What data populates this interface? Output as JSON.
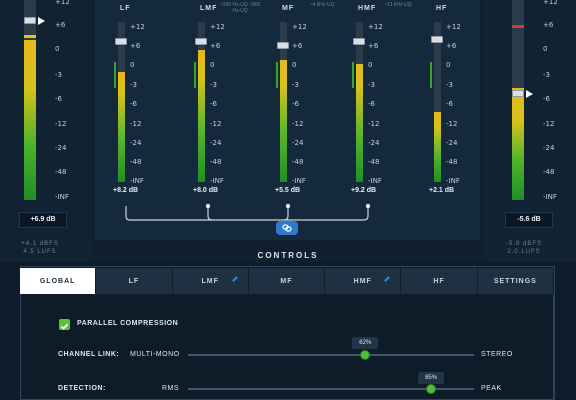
{
  "input_meter": {
    "scale": [
      "+12",
      "+6",
      "0",
      "-3",
      "-6",
      "-12",
      "-24",
      "-48",
      "-INF"
    ],
    "readout": "+6.9 dB",
    "lufs": [
      "+4.1 dBFS",
      "4.5 LUFS"
    ]
  },
  "output_meter": {
    "scale": [
      "+12",
      "+6",
      "0",
      "-3",
      "-6",
      "-12",
      "-24",
      "-48",
      "-INF"
    ],
    "readout": "-5.6 dB",
    "lufs": [
      "-5.8 dBFS",
      "2.0 LUFS"
    ]
  },
  "bands": [
    {
      "label": "LF",
      "freq": "",
      "readout": "+8.2 dB",
      "scale": [
        "+12",
        "+6",
        "0",
        "-3",
        "-6",
        "-12",
        "-24",
        "-48",
        "-INF"
      ]
    },
    {
      "label": "LMF",
      "freq": "~160 Hz-UQ  ~800 Hz-UQ",
      "readout": "+8.0 dB",
      "scale": [
        "+12",
        "+6",
        "0",
        "-3",
        "-6",
        "-12",
        "-24",
        "-48",
        "-INF"
      ]
    },
    {
      "label": "MF",
      "freq": "~4 kHz-UQ",
      "readout": "+5.5 dB",
      "scale": [
        "+12",
        "+6",
        "0",
        "-3",
        "-6",
        "-12",
        "-24",
        "-48",
        "-INF"
      ]
    },
    {
      "label": "HMF",
      "freq": "~11 kHz-UQ",
      "readout": "+9.2 dB",
      "scale": [
        "+12",
        "+6",
        "0",
        "-3",
        "-6",
        "-12",
        "-24",
        "-48",
        "-INF"
      ]
    },
    {
      "label": "HF",
      "freq": "",
      "readout": "+2.1 dB",
      "scale": [
        "+12",
        "+6",
        "0",
        "-3",
        "-6",
        "-12",
        "-24",
        "-48",
        "-INF"
      ]
    }
  ],
  "controls_title": "CONTROLS",
  "tabs": [
    {
      "label": "GLOBAL",
      "active": true
    },
    {
      "label": "LF"
    },
    {
      "label": "LMF",
      "edited": true
    },
    {
      "label": "MF"
    },
    {
      "label": "HMF",
      "edited": true
    },
    {
      "label": "HF"
    },
    {
      "label": "SETTINGS"
    }
  ],
  "global": {
    "parallel_label": "PARALLEL COMPRESSION",
    "parallel_checked": true,
    "channel_link": {
      "label": "CHANNEL LINK:",
      "left": "MULTI-MONO",
      "right": "STEREO",
      "value": "62%",
      "fraction": 0.62
    },
    "detection": {
      "label": "DETECTION:",
      "left": "RMS",
      "right": "PEAK",
      "value": "85%",
      "fraction": 0.85
    }
  },
  "colors": {
    "accent": "#4fbf3a",
    "link": "#2f7ccc",
    "background": "#0e1c2b"
  }
}
